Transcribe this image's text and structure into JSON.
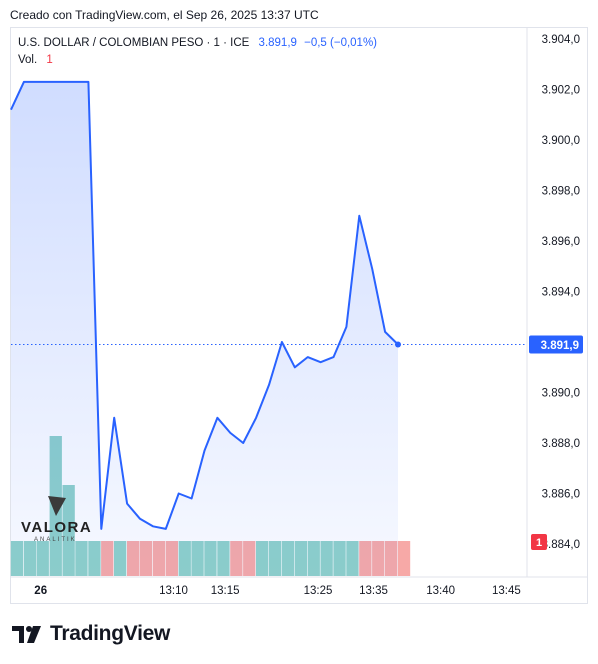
{
  "header": {
    "note": "Creado con TradingView.com, el Sep 26, 2025 13:37 UTC"
  },
  "legend": {
    "symbol": "U.S. DOLLAR / COLOMBIAN PESO · 1 · ICE",
    "last": "3.891,9",
    "change": "−0,5 (−0,01%)",
    "vol_label": "Vol.",
    "vol_value": "1"
  },
  "watermark": {
    "name": "VALORA",
    "sub": "ANALITIK"
  },
  "footer": {
    "brand": "TradingView"
  },
  "colors": {
    "line": "#2962ff",
    "up": "#8fd1c9",
    "down": "#f7a9a7",
    "badge": "#f23645"
  },
  "chart_data": {
    "type": "area",
    "y_range": [
      3883.4,
      3904.4
    ],
    "y_ticks": [
      {
        "v": 3904.0,
        "label": "3.904,0"
      },
      {
        "v": 3902.0,
        "label": "3.902,0"
      },
      {
        "v": 3900.0,
        "label": "3.900,0"
      },
      {
        "v": 3898.0,
        "label": "3.898,0"
      },
      {
        "v": 3896.0,
        "label": "3.896,0"
      },
      {
        "v": 3894.0,
        "label": "3.894,0"
      },
      {
        "v": 3890.0,
        "label": "3.890,0"
      },
      {
        "v": 3888.0,
        "label": "3.888,0"
      },
      {
        "v": 3886.0,
        "label": "3.886,0"
      },
      {
        "v": 3884.0,
        "label": "3.884,0"
      }
    ],
    "x_ticks": [
      {
        "idx": 2.3,
        "label": "26"
      },
      {
        "idx": 12.6,
        "label": "13:10"
      },
      {
        "idx": 16.6,
        "label": "13:15"
      },
      {
        "idx": 23.8,
        "label": "13:25"
      },
      {
        "idx": 28.1,
        "label": "13:35"
      },
      {
        "idx": 33.3,
        "label": "13:40"
      },
      {
        "idx": 38.4,
        "label": "13:45"
      }
    ],
    "close": [
      3901.2,
      3902.3,
      3902.3,
      3902.3,
      3902.3,
      3902.3,
      3902.3,
      3884.6,
      3889.0,
      3885.6,
      3885.0,
      3884.7,
      3884.6,
      3886.0,
      3885.8,
      3887.7,
      3889.0,
      3888.4,
      3888.0,
      3889.0,
      3890.3,
      3892.0,
      3891.0,
      3891.4,
      3891.2,
      3891.4,
      3892.6,
      3897.0,
      3894.9,
      3892.4,
      3891.9
    ],
    "volume_dir": [
      "up",
      "up",
      "up",
      "up",
      "up",
      "up",
      "up",
      "down",
      "up",
      "down",
      "down",
      "down",
      "down",
      "up",
      "up",
      "up",
      "up",
      "down",
      "down",
      "up",
      "up",
      "up",
      "up",
      "up",
      "up",
      "up",
      "up",
      "down",
      "down",
      "down",
      "down"
    ],
    "volume_rel": [
      1,
      1,
      1,
      4,
      2.6,
      1,
      1,
      1,
      1,
      1,
      1,
      1,
      1,
      1,
      1,
      1,
      1,
      1,
      1,
      1,
      1,
      1,
      1,
      1,
      1,
      1,
      1,
      1,
      1,
      1,
      1
    ],
    "last_label": "3.891,9",
    "last_value": 3891.9,
    "volume_badge": "1"
  }
}
